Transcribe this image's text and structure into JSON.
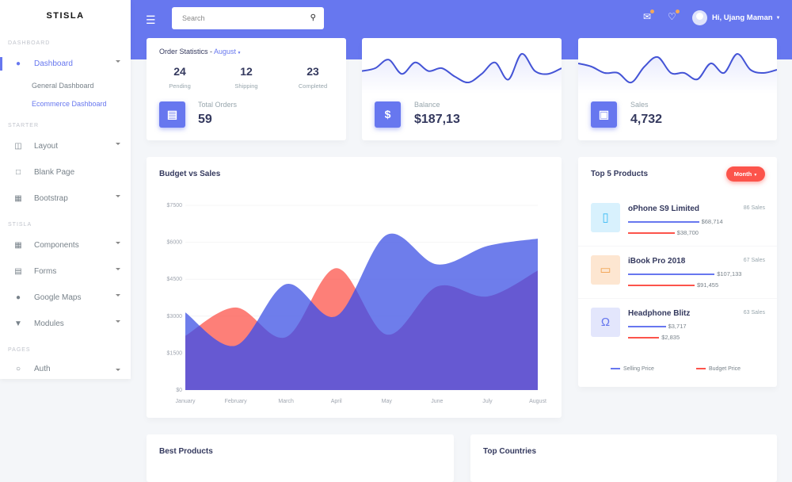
{
  "colors": {
    "primary": "#6777ef",
    "danger": "#fc544b",
    "bg": "#f4f6f9"
  },
  "sidebar": {
    "brand": "STISLA",
    "sections": [
      {
        "header": "DASHBOARD"
      },
      {
        "header": "STARTER"
      },
      {
        "header": "STISLA"
      },
      {
        "header": "PAGES"
      }
    ],
    "dashboard": {
      "label": "Dashboard",
      "icon": "fire-icon",
      "subitems": [
        "General Dashboard",
        "Ecommerce Dashboard"
      ]
    },
    "starter": [
      {
        "label": "Layout",
        "icon": "columns-icon",
        "dropdown": true
      },
      {
        "label": "Blank Page",
        "icon": "square-icon",
        "dropdown": false
      },
      {
        "label": "Bootstrap",
        "icon": "grid-icon",
        "dropdown": true
      }
    ],
    "stisla": [
      {
        "label": "Components",
        "icon": "th-large-icon",
        "dropdown": true
      },
      {
        "label": "Forms",
        "icon": "file-icon",
        "dropdown": true
      },
      {
        "label": "Google Maps",
        "icon": "map-marker-icon",
        "dropdown": true
      },
      {
        "label": "Modules",
        "icon": "plug-icon",
        "dropdown": true
      }
    ],
    "pages": [
      {
        "label": "Auth",
        "icon": "user-icon",
        "dropdown": true
      }
    ]
  },
  "header": {
    "search_placeholder": "Search",
    "user": "Hi, Ujang Maman"
  },
  "order_stats": {
    "title": "Order Statistics - ",
    "month": "August",
    "stats": [
      {
        "value": "24",
        "label": "Pending"
      },
      {
        "value": "12",
        "label": "Shipping"
      },
      {
        "value": "23",
        "label": "Completed"
      }
    ],
    "total_label": "Total Orders",
    "total_value": "59"
  },
  "balance": {
    "label": "Balance",
    "value": "$187,13",
    "sparkline": [
      5,
      6,
      9,
      4,
      8,
      5,
      6,
      3,
      1,
      4,
      8,
      2,
      11,
      5,
      4,
      6
    ]
  },
  "sales": {
    "label": "Sales",
    "value": "4,732",
    "sparkline": [
      7,
      6,
      4,
      4,
      1,
      6,
      9,
      4,
      4,
      2,
      7,
      4,
      10,
      5,
      4,
      5
    ]
  },
  "budget_chart": {
    "title": "Budget vs Sales"
  },
  "chart_data": {
    "type": "area",
    "title": "Budget vs Sales",
    "categories": [
      "January",
      "February",
      "March",
      "April",
      "May",
      "June",
      "July",
      "August"
    ],
    "ylim": [
      0,
      7500
    ],
    "yticks": [
      "$0",
      "$1500",
      "$3000",
      "$4500",
      "$6000",
      "$7500"
    ],
    "grid": true,
    "series": [
      {
        "values": [
          3150,
          1800,
          4300,
          3000,
          6300,
          5100,
          5850,
          6150
        ],
        "color": "#6777ef"
      },
      {
        "values": [
          2200,
          3350,
          2150,
          4950,
          2250,
          4200,
          3800,
          4850
        ],
        "color": "#fc544b"
      }
    ]
  },
  "top_products": {
    "title": "Top 5 Products",
    "filter": "Month",
    "items": [
      {
        "name": "oPhone S9 Limited",
        "sales": "86 Sales",
        "selling": "$68,714",
        "budget": "$38,700",
        "selling_pct": 0.64,
        "budget_pct": 0.42,
        "icon": "mobile-icon",
        "icon_color": "#3abaf4",
        "icon_bg": "#d8f1fd"
      },
      {
        "name": "iBook Pro 2018",
        "sales": "67 Sales",
        "selling": "$107,133",
        "budget": "$91,455",
        "selling_pct": 0.78,
        "budget_pct": 0.6,
        "icon": "laptop-icon",
        "icon_color": "#f0a04b",
        "icon_bg": "#fde6d1"
      },
      {
        "name": "Headphone Blitz",
        "sales": "63 Sales",
        "selling": "$3,717",
        "budget": "$2,835",
        "selling_pct": 0.34,
        "budget_pct": 0.28,
        "icon": "headphones-icon",
        "icon_color": "#6777ef",
        "icon_bg": "#e3e6fc"
      }
    ],
    "legend": [
      "Selling Price",
      "Budget Price"
    ]
  },
  "best_products": {
    "title": "Best Products"
  },
  "top_countries": {
    "title": "Top Countries"
  }
}
